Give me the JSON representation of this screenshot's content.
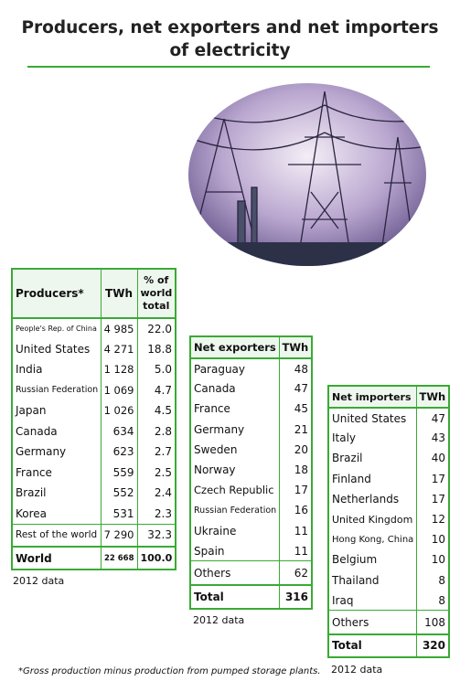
{
  "title": "Producers, net exporters and net importers of electricity",
  "producers": {
    "headers": [
      "Producers*",
      "TWh",
      "% of world total"
    ],
    "rows": [
      [
        "People's Rep. of China",
        "4 985",
        "22.0"
      ],
      [
        "United States",
        "4 271",
        "18.8"
      ],
      [
        "India",
        "1 128",
        "5.0"
      ],
      [
        "Russian Federation",
        "1 069",
        "4.7"
      ],
      [
        "Japan",
        "1 026",
        "4.5"
      ],
      [
        "Canada",
        "634",
        "2.8"
      ],
      [
        "Germany",
        "623",
        "2.7"
      ],
      [
        "France",
        "559",
        "2.5"
      ],
      [
        "Brazil",
        "552",
        "2.4"
      ],
      [
        "Korea",
        "531",
        "2.3"
      ]
    ],
    "rest": [
      "Rest of the world",
      "7 290",
      "32.3"
    ],
    "total": [
      "World",
      "22 668",
      "100.0"
    ],
    "note": "2012 data"
  },
  "exporters": {
    "headers": [
      "Net exporters",
      "TWh"
    ],
    "rows": [
      [
        "Paraguay",
        "48"
      ],
      [
        "Canada",
        "47"
      ],
      [
        "France",
        "45"
      ],
      [
        "Germany",
        "21"
      ],
      [
        "Sweden",
        "20"
      ],
      [
        "Norway",
        "18"
      ],
      [
        "Czech Republic",
        "17"
      ],
      [
        "Russian Federation",
        "16"
      ],
      [
        "Ukraine",
        "11"
      ],
      [
        "Spain",
        "11"
      ]
    ],
    "rest": [
      "Others",
      "62"
    ],
    "total": [
      "Total",
      "316"
    ],
    "note": "2012 data"
  },
  "importers": {
    "headers": [
      "Net importers",
      "TWh"
    ],
    "rows": [
      [
        "United States",
        "47"
      ],
      [
        "Italy",
        "43"
      ],
      [
        "Brazil",
        "40"
      ],
      [
        "Finland",
        "17"
      ],
      [
        "Netherlands",
        "17"
      ],
      [
        "United Kingdom",
        "12"
      ],
      [
        "Hong Kong, China",
        "10"
      ],
      [
        "Belgium",
        "10"
      ],
      [
        "Thailand",
        "8"
      ],
      [
        "Iraq",
        "8"
      ]
    ],
    "rest": [
      "Others",
      "108"
    ],
    "total": [
      "Total",
      "320"
    ],
    "note": "2012 data"
  },
  "footnote": "*Gross production minus production from pumped storage plants."
}
